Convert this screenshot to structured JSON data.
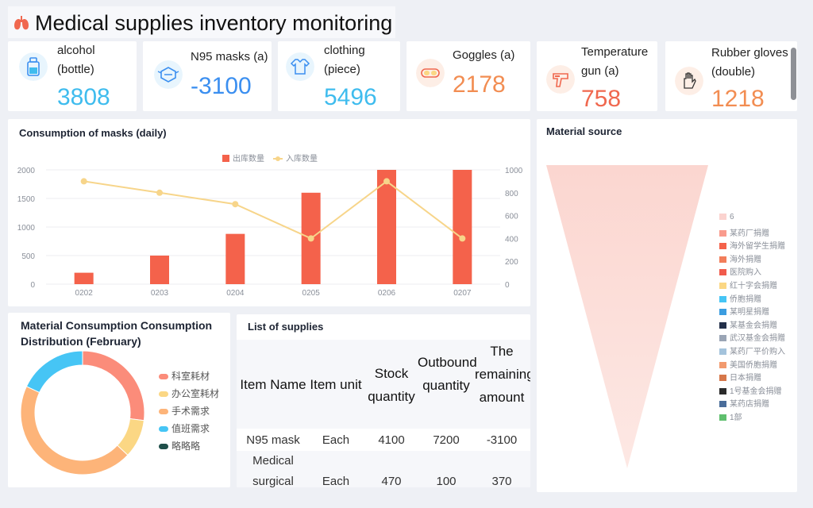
{
  "header": {
    "title": "Medical supplies inventory monitoring"
  },
  "kpis": [
    {
      "label": "alcohol (bottle)",
      "value": "3808",
      "color": "#3fbcee",
      "icon": "bottle-icon"
    },
    {
      "label": "N95 masks (a)",
      "value": "-3100",
      "color": "#3b8ff0",
      "icon": "mask-icon"
    },
    {
      "label": "clothing (piece)",
      "value": "5496",
      "color": "#3fbcee",
      "icon": "shirt-icon"
    },
    {
      "label": "Goggles (a)",
      "value": "2178",
      "color": "#f28d52",
      "icon": "goggles-icon"
    },
    {
      "label": "Temperature gun (a)",
      "value": "758",
      "color": "#f0684f",
      "icon": "thermometer-gun-icon"
    },
    {
      "label": "Rubber gloves (double)",
      "value": "1218",
      "color": "#f28d52",
      "icon": "glove-icon"
    }
  ],
  "masks_panel": {
    "title": "Consumption of masks (daily)"
  },
  "donut_panel": {
    "title": "Material Consumption Consumption Distribution (February)"
  },
  "supplies_panel": {
    "title": "List of supplies"
  },
  "source_panel": {
    "title": "Material source"
  },
  "chart_data": [
    {
      "type": "bar",
      "title": "Consumption of masks (daily)",
      "categories": [
        "0202",
        "0203",
        "0204",
        "0205",
        "0206",
        "0207"
      ],
      "series": [
        {
          "name": "出库数量",
          "type": "bar",
          "axis": "left",
          "color": "#f4624b",
          "values": [
            200,
            500,
            880,
            1600,
            2000,
            2000
          ]
        },
        {
          "name": "入库数量",
          "type": "line",
          "axis": "right",
          "color": "#f7d58a",
          "values": [
            900,
            800,
            700,
            400,
            900,
            400
          ]
        }
      ],
      "y_left": {
        "ticks": [
          0,
          500,
          1000,
          1500,
          2000
        ],
        "range": [
          0,
          2000
        ]
      },
      "y_right": {
        "ticks": [
          0,
          200,
          400,
          600,
          800,
          1000
        ],
        "range": [
          0,
          1000
        ]
      },
      "legend_position": "top-center"
    },
    {
      "type": "pie",
      "title": "Material Consumption Consumption Distribution (February)",
      "style": "donut",
      "legend_position": "right",
      "slices": [
        {
          "name": "科室耗材",
          "value": 27,
          "color": "#fb8c7a"
        },
        {
          "name": "办公室耗材",
          "value": 10,
          "color": "#fbd784"
        },
        {
          "name": "手术需求",
          "value": 45,
          "color": "#fdb479"
        },
        {
          "name": "值班需求",
          "value": 18,
          "color": "#46c5f5"
        },
        {
          "name": "略略略",
          "value": 0,
          "color": "#1f4f4a"
        }
      ]
    },
    {
      "type": "funnel",
      "title": "Material source",
      "legend_position": "right",
      "items": [
        {
          "name": "6",
          "color": "#fbd3cf"
        },
        {
          "name": "某药厂捐赠",
          "color": "#f99b8d"
        },
        {
          "name": "海外留学生捐赠",
          "color": "#f4624b"
        },
        {
          "name": "海外捐赠",
          "color": "#f27e5b"
        },
        {
          "name": "医院购入",
          "color": "#f15b4c"
        },
        {
          "name": "红十字会捐赠",
          "color": "#fbd784"
        },
        {
          "name": "侨胞捐赠",
          "color": "#46c5f5"
        },
        {
          "name": "某明星捐赠",
          "color": "#3b9de0"
        },
        {
          "name": "某基金会捐赠",
          "color": "#23304a"
        },
        {
          "name": "武汉基金会捐赠",
          "color": "#9aa5b5"
        },
        {
          "name": "某药厂平价购入",
          "color": "#a4c3dc"
        },
        {
          "name": "美国侨胞捐赠",
          "color": "#f29a6e"
        },
        {
          "name": "日本捐赠",
          "color": "#d6774a"
        },
        {
          "name": "1号基金会捐赠",
          "color": "#2b2b2b"
        },
        {
          "name": "某药店捐赠",
          "color": "#4a6d9a"
        },
        {
          "name": "1部",
          "color": "#5fbf6e"
        }
      ]
    },
    {
      "type": "table",
      "title": "List of supplies",
      "columns": [
        "Item Name",
        "Item unit",
        "Stock quantity",
        "Outbound quantity",
        "The remaining amount"
      ],
      "rows": [
        [
          "N95 mask",
          "Each",
          "4100",
          "7200",
          "-3100"
        ],
        [
          "Medical surgical",
          "Each",
          "470",
          "100",
          "370"
        ]
      ]
    }
  ]
}
